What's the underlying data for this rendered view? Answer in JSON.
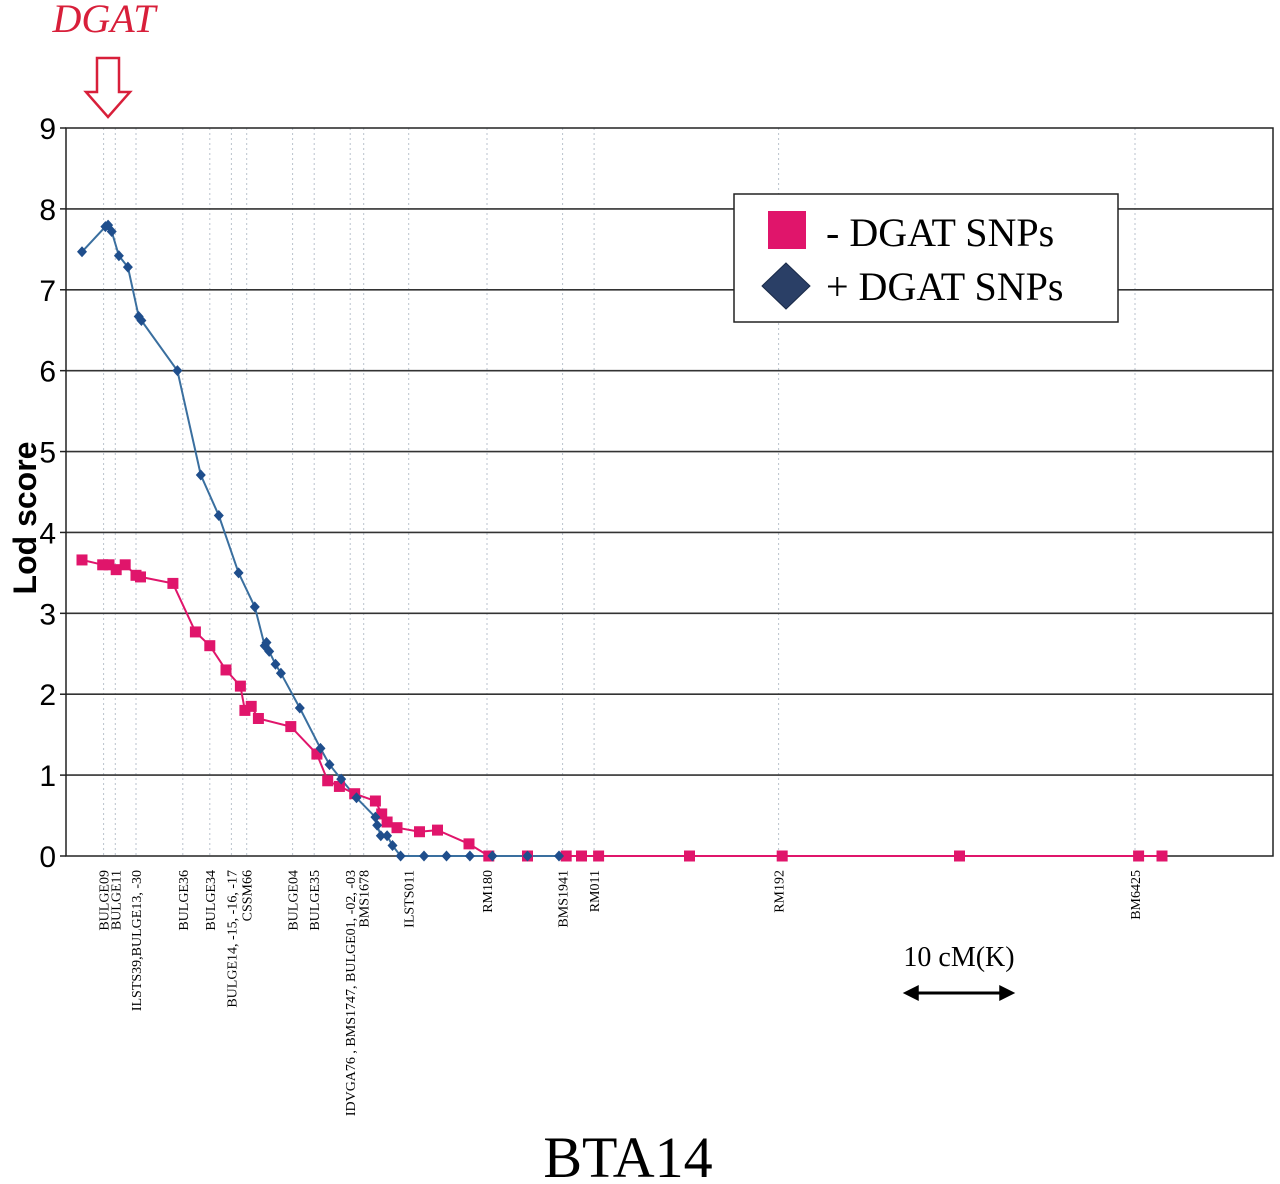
{
  "chart_data": {
    "type": "line",
    "title": "BTA14",
    "ylabel": "Lod score",
    "xlabel": "",
    "ylim": [
      0,
      9
    ],
    "xlim": [
      -2,
      117
    ],
    "yticks": [
      "0",
      "1",
      "2",
      "3",
      "4",
      "5",
      "6",
      "7",
      "8",
      "9"
    ],
    "grid": true,
    "legend": "top-right",
    "gene_annotation": "DGAT",
    "scale_bar_label": "10 cM(K)",
    "scale_bar_length_cm": 10,
    "marker_labels": [
      {
        "text": "BULGE09",
        "x": 0.4
      },
      {
        "text": "BULGE11",
        "x": 1.7
      },
      {
        "text": "ILSTS39,BULGE13, -30",
        "x": 4.0
      },
      {
        "text": "BULGE36",
        "x": 9.2
      },
      {
        "text": "BULGE34",
        "x": 12.2
      },
      {
        "text": "BULGE14, -15, -16, -17",
        "x": 14.6
      },
      {
        "text": "CSSM66",
        "x": 16.3
      },
      {
        "text": "BULGE04",
        "x": 21.4
      },
      {
        "text": "BULGE35",
        "x": 23.8
      },
      {
        "text": "IDVGA76 , BMS1747, BULGE01, -02, -03",
        "x": 27.8
      },
      {
        "text": "BMS1678",
        "x": 29.3
      },
      {
        "text": "ILSTS011",
        "x": 34.3
      },
      {
        "text": "RM180",
        "x": 43.0
      },
      {
        "text": "BMS1941",
        "x": 51.4
      },
      {
        "text": "RM011",
        "x": 54.9
      },
      {
        "text": "RM192",
        "x": 75.4
      },
      {
        "text": "BM6425",
        "x": 115.0
      }
    ],
    "marker_lines_x": [
      0.4,
      1.7,
      4.0,
      9.2,
      12.2,
      14.6,
      16.3,
      21.4,
      23.8,
      27.8,
      29.3,
      34.3,
      43.0,
      51.4,
      54.9,
      75.4,
      115.0
    ],
    "series": [
      {
        "name": "- DGAT SNPs",
        "color": "#e0156b",
        "marker": "square",
        "x": [
          -2,
          0.3,
          1.0,
          1.8,
          2.8,
          4.0,
          4.5,
          8.1,
          10.6,
          12.2,
          14.0,
          15.6,
          16.1,
          16.8,
          17.6,
          21.2,
          24.1,
          25.3,
          26.6,
          28.3,
          30.6,
          31.3,
          31.9,
          33.0,
          35.5,
          37.5,
          41.0,
          43.2,
          47.5,
          51.8,
          53.5,
          55.4,
          65.5,
          75.8,
          95.5,
          115.4,
          118.0
        ],
        "y": [
          3.66,
          3.6,
          3.6,
          3.54,
          3.6,
          3.47,
          3.45,
          3.37,
          2.77,
          2.6,
          2.3,
          2.1,
          1.8,
          1.85,
          1.7,
          1.6,
          1.26,
          0.93,
          0.86,
          0.77,
          0.68,
          0.52,
          0.42,
          0.35,
          0.3,
          0.32,
          0.15,
          0.0,
          0.0,
          0.0,
          0.0,
          0.0,
          0.0,
          0.0,
          0.0,
          0.0,
          0.0
        ]
      },
      {
        "name": "+ DGAT SNPs",
        "color": "#1f4e8c",
        "marker": "diamond",
        "x": [
          -2,
          0.6,
          0.9,
          1.3,
          2.1,
          3.1,
          4.3,
          4.6,
          8.6,
          11.2,
          13.2,
          15.4,
          17.2,
          18.3,
          18.5,
          18.8,
          19.5,
          20.1,
          22.2,
          24.5,
          25.5,
          26.8,
          28.5,
          30.6,
          30.8,
          31.2,
          31.9,
          32.5,
          33.4,
          36.0,
          38.5,
          41.1,
          43.6,
          47.5,
          51.0
        ],
        "y": [
          7.47,
          7.78,
          7.8,
          7.72,
          7.42,
          7.28,
          6.67,
          6.62,
          6.0,
          4.71,
          4.21,
          3.5,
          3.08,
          2.6,
          2.64,
          2.53,
          2.37,
          2.26,
          1.83,
          1.33,
          1.13,
          0.95,
          0.72,
          0.48,
          0.38,
          0.25,
          0.25,
          0.13,
          0.0,
          0.0,
          0.0,
          0.0,
          0.0,
          0.0,
          0.0
        ]
      }
    ]
  }
}
